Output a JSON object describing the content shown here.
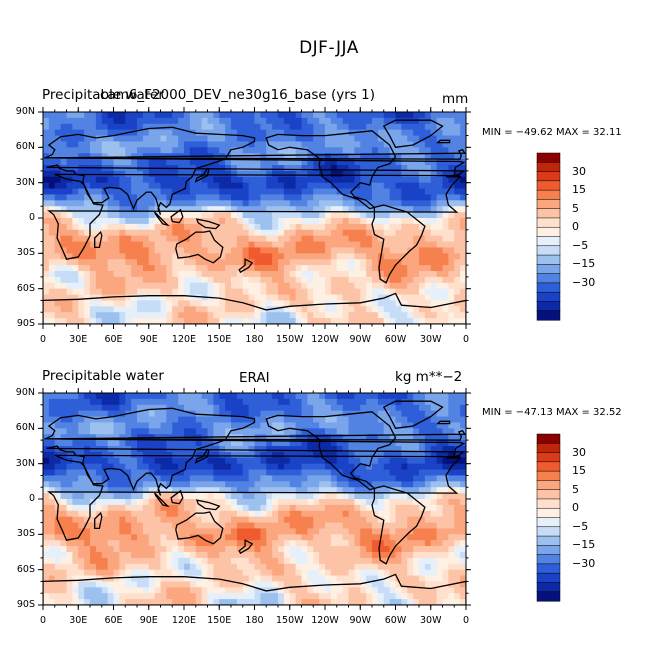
{
  "main_title": "DJF-JJA",
  "panels": [
    {
      "left_title": "Precipitable water",
      "center_title": "cam6_F2000_DEV_ne30g16_base (yrs 1)",
      "right_title": "mm",
      "stats": "MIN = −49.62 MAX =  32.11"
    },
    {
      "left_title": "Precipitable water",
      "center_title": "ERAI",
      "right_title": "kg m**−2",
      "stats": "MIN = −47.13 MAX =  32.52"
    }
  ],
  "chart_data": {
    "type": "heatmap",
    "projection": "cylindrical equidistant world map with coastlines",
    "x_ticks": [
      "0",
      "30E",
      "60E",
      "90E",
      "120E",
      "150E",
      "180",
      "150W",
      "120W",
      "90W",
      "60W",
      "30W",
      "0"
    ],
    "y_ticks": [
      "90N",
      "60N",
      "30N",
      "0",
      "30S",
      "60S",
      "90S"
    ],
    "xlim": [
      0,
      360
    ],
    "ylim": [
      -90,
      90
    ],
    "colorbar": {
      "labels": [
        "30",
        "15",
        "5",
        "0",
        "−5",
        "−15",
        "−30"
      ],
      "levels": [
        -40,
        -35,
        -30,
        -25,
        -20,
        -15,
        -10,
        -5,
        -2.5,
        0,
        2.5,
        5,
        10,
        15,
        20,
        25,
        30,
        35
      ],
      "colors": [
        "#8b0000",
        "#c0260a",
        "#dc3b1a",
        "#ef5b2e",
        "#f7804f",
        "#fca67f",
        "#fdc3a6",
        "#fee0cc",
        "#fff0e4",
        "#e6f0fb",
        "#c7dcf6",
        "#9cc1ef",
        "#7aa5ea",
        "#5283e3",
        "#2e5fd8",
        "#1a42c6",
        "#0c2aa6",
        "#05107a"
      ]
    },
    "zonal_pattern": [
      {
        "lat": 90,
        "value": -22
      },
      {
        "lat": 60,
        "value": -15
      },
      {
        "lat": 45,
        "value": -22
      },
      {
        "lat": 30,
        "value": -28
      },
      {
        "lat": 15,
        "value": -18
      },
      {
        "lat": 5,
        "value": -6
      },
      {
        "lat": 0,
        "value": 1
      },
      {
        "lat": -15,
        "value": 10
      },
      {
        "lat": -30,
        "value": 14
      },
      {
        "lat": -50,
        "value": 6
      },
      {
        "lat": -70,
        "value": 3
      },
      {
        "lat": -90,
        "value": 2
      }
    ]
  }
}
